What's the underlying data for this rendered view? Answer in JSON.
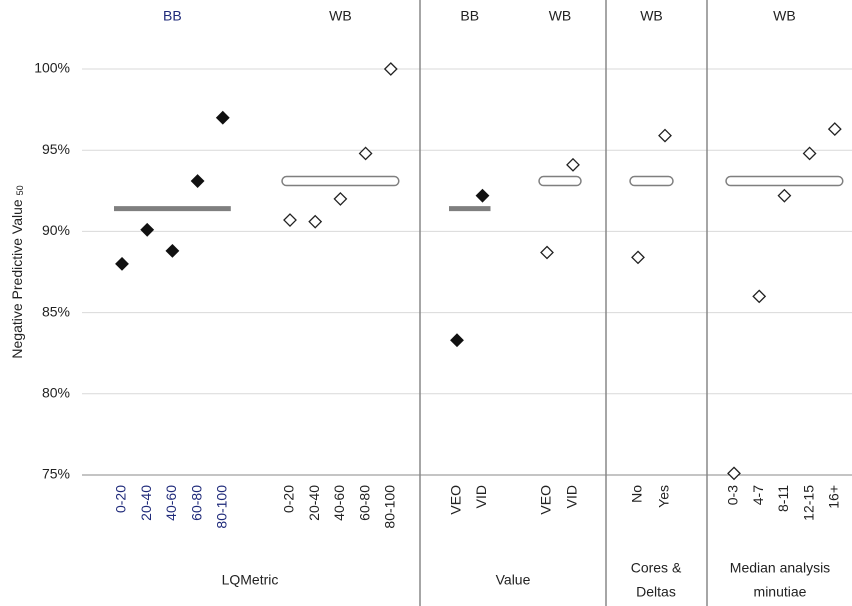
{
  "chart_data": {
    "type": "dot",
    "y_label": "Negative Predictive Value",
    "y_label_subscript": "50",
    "ylim": [
      75,
      100
    ],
    "yticks": [
      {
        "value": 75,
        "label": "75%"
      },
      {
        "value": 80,
        "label": "80%"
      },
      {
        "value": 85,
        "label": "85%"
      },
      {
        "value": 90,
        "label": "90%"
      },
      {
        "value": 95,
        "label": "95%"
      },
      {
        "value": 100,
        "label": "100%"
      }
    ],
    "grid": true,
    "sections": [
      {
        "label_lines": [
          "LQMetric"
        ],
        "groups": [
          {
            "header": "BB",
            "text_color": "#1f2a7a",
            "marker": "filled",
            "color": "#111111",
            "mean_color": "#7f7f7f",
            "categories": [
              "0-20",
              "20-40",
              "40-60",
              "60-80",
              "80-100"
            ],
            "values": [
              88.0,
              90.1,
              88.8,
              93.1,
              97.0
            ],
            "mean": 91.4
          },
          {
            "header": "WB",
            "text_color": "#222222",
            "marker": "open",
            "color": "#222222",
            "mean_color": "#7f7f7f",
            "categories": [
              "0-20",
              "20-40",
              "40-60",
              "60-80",
              "80-100"
            ],
            "values": [
              90.7,
              90.6,
              92.0,
              94.8,
              100.0
            ],
            "mean": 93.1
          }
        ]
      },
      {
        "label_lines": [
          "Value"
        ],
        "groups": [
          {
            "header": "BB",
            "text_color": "#222222",
            "marker": "filled",
            "color": "#111111",
            "mean_color": "#7f7f7f",
            "categories": [
              "VEO",
              "VID"
            ],
            "values": [
              83.3,
              92.2
            ],
            "mean": 91.4
          },
          {
            "header": "WB",
            "text_color": "#222222",
            "marker": "open",
            "color": "#222222",
            "mean_color": "#7f7f7f",
            "categories": [
              "VEO",
              "VID"
            ],
            "values": [
              88.7,
              94.1
            ],
            "mean": 93.1
          }
        ]
      },
      {
        "label_lines": [
          "Cores &",
          "Deltas"
        ],
        "groups": [
          {
            "header": "WB",
            "text_color": "#222222",
            "marker": "open",
            "color": "#222222",
            "mean_color": "#7f7f7f",
            "categories": [
              "No",
              "Yes"
            ],
            "values": [
              88.4,
              95.9
            ],
            "mean": 93.1
          }
        ]
      },
      {
        "label_lines": [
          "Median analysis",
          "minutiae"
        ],
        "groups": [
          {
            "header": "WB",
            "text_color": "#222222",
            "marker": "open",
            "color": "#222222",
            "mean_color": "#7f7f7f",
            "categories": [
              "0-3",
              "4-7",
              "8-11",
              "12-15",
              "16+"
            ],
            "values": [
              75.1,
              86.0,
              92.2,
              94.8,
              96.3
            ],
            "mean": 93.1
          }
        ]
      }
    ]
  }
}
